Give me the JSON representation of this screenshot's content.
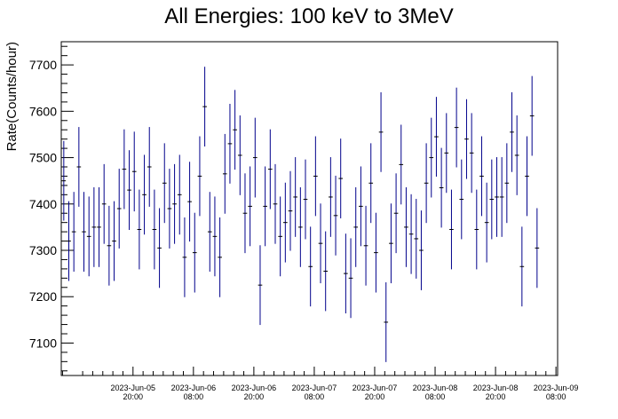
{
  "chart_data": {
    "type": "scatter",
    "title": "All Energies:  100 keV to 3MeV",
    "xlabel": "",
    "ylabel": "Rate(Counts/hour)",
    "ylim": [
      7030,
      7750
    ],
    "yticks": [
      7100,
      7200,
      7300,
      7400,
      7500,
      7600,
      7700
    ],
    "xlim": [
      "2023-Jun-05 05:45",
      "2023-Jun-09 08:20"
    ],
    "xticks": [
      {
        "date": "2023-Jun-05",
        "time": "20:00"
      },
      {
        "date": "2023-Jun-06",
        "time": "08:00"
      },
      {
        "date": "2023-Jun-06",
        "time": "20:00"
      },
      {
        "date": "2023-Jun-07",
        "time": "08:00"
      },
      {
        "date": "2023-Jun-07",
        "time": "20:00"
      },
      {
        "date": "2023-Jun-08",
        "time": "08:00"
      },
      {
        "date": "2023-Jun-08",
        "time": "20:00"
      },
      {
        "date": "2023-Jun-09",
        "time": "08:00"
      }
    ],
    "marker_color": "#000000",
    "errorbar_color": "#00008b",
    "error_half_width": 86,
    "bin_hours": 1,
    "x_start": "2023-Jun-05 06:15",
    "y": [
      7450,
      7320,
      7340,
      7480,
      7340,
      7330,
      7350,
      7350,
      7400,
      7310,
      7320,
      7390,
      7475,
      7430,
      7470,
      7345,
      7420,
      7480,
      7345,
      7305,
      7445,
      7390,
      7400,
      7420,
      7285,
      7405,
      7295,
      7460,
      7610,
      7340,
      7330,
      7285,
      7465,
      7530,
      7560,
      7505,
      7380,
      7395,
      7500,
      7225,
      7395,
      7475,
      7400,
      7330,
      7360,
      7385,
      7415,
      7350,
      7410,
      7265,
      7460,
      7315,
      7255,
      7415,
      7375,
      7455,
      7250,
      7240,
      7350,
      7395,
      7310,
      7445,
      7295,
      7555,
      7145,
      7315,
      7380,
      7485,
      7350,
      7335,
      7325,
      7300,
      7445,
      7500,
      7545,
      7435,
      7510,
      7345,
      7565,
      7410,
      7540,
      7510,
      7345,
      7460,
      7360,
      7410,
      7415,
      7415,
      7445,
      7555,
      7505,
      7265,
      7460,
      7590,
      7305
    ]
  }
}
